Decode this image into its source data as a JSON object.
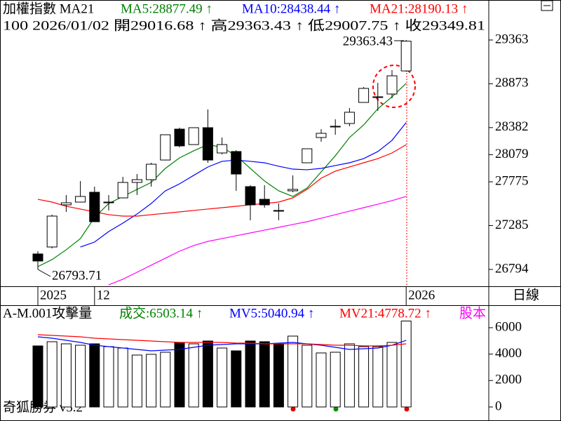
{
  "chart_data": [
    {
      "type": "candlestick",
      "title": "加權指數 MA21",
      "subtitle": "100 2026/01/02 開29016.68 ↑ 高29363.43 ↑ 低29007.75 ↑ 收29349.81",
      "categories": [
        "2025",
        null,
        null,
        null,
        "12",
        null,
        null,
        null,
        null,
        null,
        null,
        null,
        null,
        null,
        null,
        null,
        null,
        null,
        null,
        null,
        null,
        null,
        null,
        null,
        null,
        null,
        "2026"
      ],
      "open": [
        26967,
        27045,
        27517,
        27548,
        27658,
        27540,
        27595,
        27768,
        27799,
        28019,
        28365,
        28192,
        28381,
        28098,
        28114,
        27721,
        27579,
        27454,
        27674,
        27988,
        28271,
        28389,
        28428,
        28664,
        28719,
        28758,
        29016.68
      ],
      "high": [
        26998,
        27407,
        27627,
        27784,
        27721,
        27627,
        27831,
        27862,
        27988,
        28302,
        28381,
        28381,
        28585,
        28271,
        28129,
        27737,
        27737,
        27532,
        27847,
        28145,
        28365,
        28475,
        28601,
        28837,
        28884,
        29025,
        29363.43
      ],
      "low": [
        26793.71,
        27029,
        27438,
        27548,
        27328,
        27454,
        27595,
        27627,
        27721,
        28019,
        28161,
        28192,
        27988,
        28082,
        27674,
        27344,
        27485,
        27344,
        27658,
        27988,
        28224,
        28302,
        28397,
        28664,
        28569,
        28711,
        29007.75
      ],
      "close": [
        26888,
        27391,
        27540,
        27611,
        27328,
        27548,
        27768,
        27799,
        27972,
        28302,
        28177,
        28381,
        28019,
        28192,
        27862,
        27517,
        27517,
        27446,
        27690,
        28145,
        28318,
        28397,
        28554,
        28821,
        28727,
        28962,
        29349.81
      ],
      "up_color": "#ffffff",
      "down_color": "#000000",
      "series": [
        {
          "name": "MA5:28877.49 ↑",
          "color": "#008000",
          "values": [
            26825,
            26904,
            27014,
            27139,
            27375,
            27532,
            27611,
            27690,
            27768,
            27925,
            28043,
            28122,
            28192,
            28161,
            28067,
            27925,
            27784,
            27674,
            27611,
            27705,
            27886,
            28067,
            28271,
            28412,
            28593,
            28727,
            28877.49
          ]
        },
        {
          "name": "MA10:28438.44 ↑",
          "color": "#0000ff",
          "values": [
            null,
            null,
            null,
            27045,
            27100,
            27218,
            27312,
            27414,
            27532,
            27674,
            27752,
            27847,
            27941,
            28004,
            28019,
            28004,
            27988,
            27949,
            27917,
            27910,
            27925,
            27957,
            27988,
            28035,
            28114,
            28239,
            28438.44
          ]
        },
        {
          "name": "MA21:28190.13 ↑",
          "color": "#ff0000",
          "values": [
            27579,
            27548,
            27501,
            27470,
            27438,
            27407,
            27391,
            27391,
            27407,
            27422,
            27438,
            27454,
            27470,
            27485,
            27501,
            27517,
            27532,
            27548,
            27595,
            27690,
            27815,
            27894,
            27941,
            27988,
            28035,
            28098,
            28190.13
          ]
        },
        {
          "color": "#ff00ff",
          "values": [
            null,
            null,
            null,
            null,
            null,
            26621,
            26684,
            26762,
            26841,
            26919,
            26998,
            27061,
            27108,
            27139,
            27171,
            27202,
            27234,
            27265,
            27297,
            27328,
            27367,
            27407,
            27446,
            27485,
            27524,
            27564,
            27611
          ]
        }
      ],
      "annotations": [
        "29363.43",
        "26793.71"
      ],
      "period": "日線",
      "ylim": [
        26605,
        29811
      ],
      "yticks": [
        29363,
        28873,
        28382,
        28079,
        27775,
        27285,
        26794
      ]
    },
    {
      "type": "bar",
      "title": "A-M.001攻擊量",
      "series": [
        {
          "name": "成交:6503.14 ↑",
          "color": "#008000",
          "values": [
            4620,
            4938,
            4779,
            4673,
            4779,
            4567,
            4460,
            3929,
            3983,
            4142,
            4885,
            4779,
            4991,
            4460,
            4248,
            4991,
            4938,
            4779,
            5363,
            4673,
            4089,
            4142,
            4779,
            4567,
            4567,
            4885,
            6503.14
          ]
        },
        {
          "name": "MV5:5040.94 ↑",
          "color": "#0000ff",
          "values": [
            5310,
            5204,
            5045,
            4885,
            4673,
            4567,
            4460,
            4354,
            4248,
            4301,
            4354,
            4514,
            4673,
            4726,
            4779,
            4779,
            4779,
            4832,
            4885,
            4779,
            4673,
            4514,
            4354,
            4407,
            4460,
            4673,
            5040.94
          ]
        },
        {
          "name": "MV21:4778.72 ↑",
          "color": "#ff0000",
          "values": [
            5469,
            5416,
            5363,
            5310,
            5204,
            5151,
            5098,
            5045,
            4991,
            4938,
            4885,
            4885,
            4885,
            4885,
            4832,
            4832,
            4779,
            4779,
            4779,
            4779,
            4726,
            4673,
            4673,
            4620,
            4620,
            4673,
            4778.72
          ]
        },
        {
          "name": "股本",
          "color": "#ff00ff"
        }
      ],
      "ylim": [
        -956,
        7593
      ],
      "yticks": [
        0,
        2000,
        4000,
        6000
      ]
    }
  ],
  "footer": "奇狐勝券 v5.2"
}
